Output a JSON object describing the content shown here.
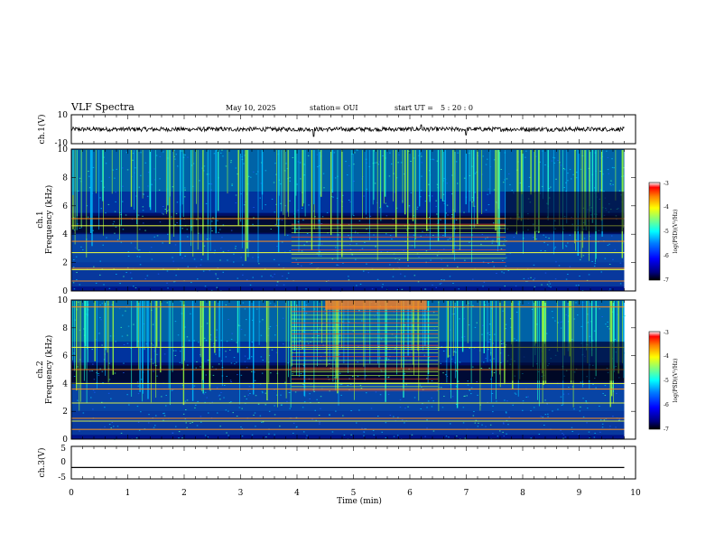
{
  "header": {
    "title": "VLF Spectra",
    "date": "May 10, 2025",
    "station": "station= OUI",
    "start_prefix": "start UT =",
    "start_value": "5 : 20 : 0"
  },
  "colors": {
    "background": "#ffffff",
    "axes": "#000000",
    "colormap": [
      "#000000",
      "#00007f",
      "#0000ff",
      "#007fff",
      "#00ffff",
      "#7fff7f",
      "#ffff00",
      "#ff7f00",
      "#ff0000",
      "#ffffff"
    ]
  },
  "chart_data": [
    {
      "type": "line",
      "panel": "ch1-waveform",
      "ylabel": "ch.1(V)",
      "ylim": [
        -10,
        10
      ],
      "y_tick_labels": [
        "10",
        "-10"
      ],
      "description_values": {
        "baseline": 0,
        "noise_amplitude": 1.5,
        "spikes": [
          {
            "x": 4.3,
            "y": -5
          },
          {
            "x": 7.0,
            "y": -4
          },
          {
            "x": 6.2,
            "y": 3
          }
        ]
      }
    },
    {
      "type": "heatmap",
      "panel": "ch1-spectrogram",
      "ylabel": "ch.1\nFrequency (kHz)",
      "ylabel_lines": [
        "ch.1",
        "Frequency (kHz)"
      ],
      "xlim": [
        0,
        10
      ],
      "ylim": [
        0,
        10
      ],
      "y_tick_labels": [
        "0",
        "2",
        "4",
        "6",
        "8",
        "10"
      ],
      "colorbar": {
        "label": "log(PSD)(V²/Hz)",
        "range": [
          -7,
          -3
        ],
        "tick_labels": [
          "-3",
          "-4",
          "-5",
          "-6",
          "-7"
        ]
      },
      "data_end_min": 9.8,
      "tones_khz": [
        0.7,
        1.5,
        1.6,
        2.7,
        3.5,
        4.6,
        5.1
      ]
    },
    {
      "type": "heatmap",
      "panel": "ch2-spectrogram",
      "ylabel": "ch.2\nFrequency (kHz)",
      "ylabel_lines": [
        "ch.2",
        "Frequency (kHz)"
      ],
      "xlim": [
        0,
        10
      ],
      "ylim": [
        0,
        10
      ],
      "y_tick_labels": [
        "0",
        "2",
        "4",
        "6",
        "8",
        "10"
      ],
      "colorbar": {
        "label": "log(PSD)(V²/Hz)",
        "range": [
          -7,
          -3
        ],
        "tick_labels": [
          "-3",
          "-4",
          "-5",
          "-6",
          "-7"
        ]
      },
      "data_end_min": 9.8,
      "tones_khz": [
        0.7,
        1.3,
        1.5,
        2.6,
        3.6,
        4.0,
        5.0,
        6.6,
        9.5
      ]
    },
    {
      "type": "line",
      "panel": "ch3-waveform",
      "ylabel": "ch.3(V)",
      "ylim": [
        -5,
        5
      ],
      "y_tick_labels": [
        "5",
        "0",
        "-5"
      ],
      "x": [
        0,
        9.8
      ],
      "y": [
        -1.5,
        -1.5
      ]
    }
  ],
  "xaxis": {
    "label": "Time (min)",
    "ticks": [
      "0",
      "1",
      "2",
      "3",
      "4",
      "5",
      "6",
      "7",
      "8",
      "9",
      "10"
    ]
  }
}
